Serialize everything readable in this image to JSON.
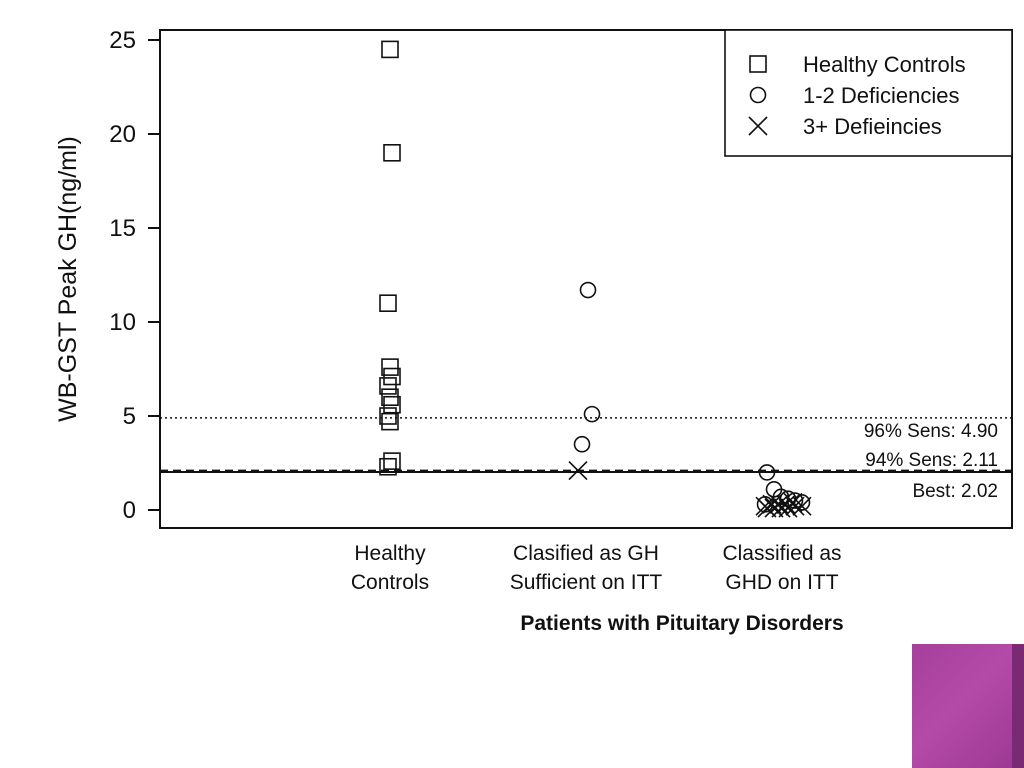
{
  "chart_data": {
    "type": "scatter",
    "title": "",
    "xlabel": "Patients with Pituitary Disorders",
    "ylabel": "WB-GST Peak GH(ng/ml)",
    "ylim": [
      -1,
      26
    ],
    "yticks": [
      0,
      5,
      10,
      15,
      20,
      25
    ],
    "categories": [
      [
        "Healthy",
        "Controls"
      ],
      [
        "Clasified as GH",
        "Sufficient on ITT"
      ],
      [
        "Classified as",
        "GHD on ITT"
      ]
    ],
    "legend": {
      "position": "top-right",
      "entries": [
        {
          "marker": "square",
          "label": "Healthy Controls"
        },
        {
          "marker": "circle",
          "label": "1-2 Deficiencies"
        },
        {
          "marker": "cross",
          "label": "3+ Defieincies"
        }
      ]
    },
    "series": [
      {
        "name": "Healthy Controls",
        "marker": "square",
        "points": [
          {
            "x": 0,
            "y": 24.5
          },
          {
            "x": 0,
            "y": 19.0
          },
          {
            "x": 0,
            "y": 11.0
          },
          {
            "x": 0,
            "y": 7.6
          },
          {
            "x": 0,
            "y": 7.1
          },
          {
            "x": 0,
            "y": 6.6
          },
          {
            "x": 0,
            "y": 6.0
          },
          {
            "x": 0,
            "y": 5.6
          },
          {
            "x": 0,
            "y": 5.0
          },
          {
            "x": 0,
            "y": 4.7
          },
          {
            "x": 0,
            "y": 2.6
          },
          {
            "x": 0,
            "y": 2.3
          }
        ]
      },
      {
        "name": "1-2 Deficiencies",
        "marker": "circle",
        "points": [
          {
            "x": 1,
            "y": 11.7
          },
          {
            "x": 1,
            "y": 5.1
          },
          {
            "x": 1,
            "y": 3.5
          },
          {
            "x": 2,
            "y": 2.0
          },
          {
            "x": 2,
            "y": 1.1
          },
          {
            "x": 2,
            "y": 0.7
          },
          {
            "x": 2,
            "y": 0.6
          },
          {
            "x": 2,
            "y": 0.5
          },
          {
            "x": 2,
            "y": 0.4
          },
          {
            "x": 2,
            "y": 0.3
          }
        ]
      },
      {
        "name": "3+ Defieincies",
        "marker": "cross",
        "points": [
          {
            "x": 1,
            "y": 2.1
          },
          {
            "x": 2,
            "y": 0.1
          },
          {
            "x": 2,
            "y": 0.1
          },
          {
            "x": 2,
            "y": 0.1
          },
          {
            "x": 2,
            "y": 0.1
          },
          {
            "x": 2,
            "y": 0.2
          },
          {
            "x": 2,
            "y": 0.2
          },
          {
            "x": 2,
            "y": 0.2
          },
          {
            "x": 2,
            "y": 0.3
          },
          {
            "x": 2,
            "y": 0.3
          },
          {
            "x": 2,
            "y": 0.3
          },
          {
            "x": 2,
            "y": 0.4
          }
        ]
      }
    ],
    "reference_lines": [
      {
        "y": 4.9,
        "style": "dotted",
        "label": "96% Sens: 4.90"
      },
      {
        "y": 2.11,
        "style": "dashed",
        "label": "94% Sens: 2.11"
      },
      {
        "y": 2.02,
        "style": "solid",
        "label": "Best: 2.02"
      }
    ],
    "grid": false
  }
}
